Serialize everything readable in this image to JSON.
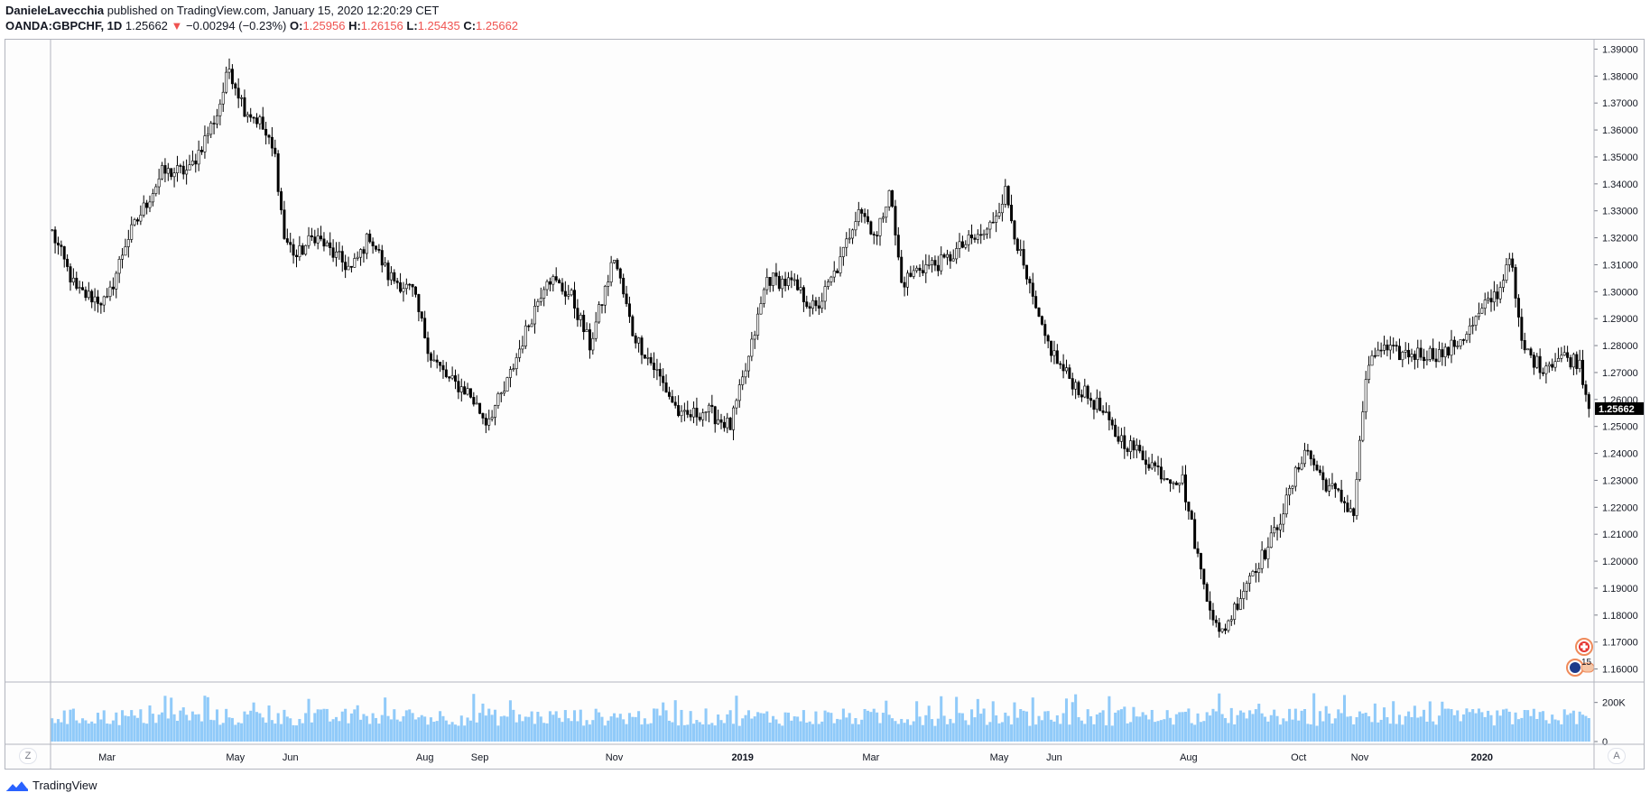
{
  "header": {
    "author": "DanieleLavecchia",
    "published_text": "published on TradingView.com, January 15, 2020 12:20:29 CET",
    "symbol": "OANDA:GBPCHF, 1D",
    "last": "1.25662",
    "change": "−0.00294 (−0.23%)",
    "open_label": "O:",
    "open": "1.25956",
    "high_label": "H:",
    "high": "1.26156",
    "low_label": "L:",
    "low": "1.25435",
    "close_label": "C:",
    "close": "1.25662"
  },
  "footer": {
    "brand": "TradingView"
  },
  "buttons": {
    "z_label": "Z",
    "a_label": "A"
  },
  "badges": {
    "events_count": "15"
  },
  "colors": {
    "candle": "#000000",
    "volume": "#90caf9",
    "last_price_bg": "#000000",
    "down": "#ef5350"
  },
  "chart_data": {
    "type": "candlestick",
    "title": "",
    "x_ticks": [
      "Mar",
      "May",
      "Jun",
      "Aug",
      "Sep",
      "Nov",
      "2019",
      "Mar",
      "May",
      "Jun",
      "Aug",
      "Oct",
      "Nov",
      "2020"
    ],
    "x_tick_positions_index": [
      18,
      60,
      78,
      122,
      140,
      184,
      226,
      268,
      310,
      328,
      372,
      408,
      428,
      468
    ],
    "y_ticks": [
      "1.39000",
      "1.38000",
      "1.37000",
      "1.36000",
      "1.35000",
      "1.34000",
      "1.33000",
      "1.32000",
      "1.31000",
      "1.30000",
      "1.29000",
      "1.28000",
      "1.27000",
      "1.26000",
      "1.25000",
      "1.24000",
      "1.23000",
      "1.22000",
      "1.21000",
      "1.20000",
      "1.19000",
      "1.18000",
      "1.17000",
      "1.16000"
    ],
    "ylim": [
      1.1555,
      1.3935
    ],
    "last_price_label": "1.25662",
    "volume_ticks": [
      "200K",
      "0"
    ],
    "volume_max": 300000,
    "series_anchors": [
      [
        0,
        1.322
      ],
      [
        8,
        1.3
      ],
      [
        18,
        1.296
      ],
      [
        24,
        1.318
      ],
      [
        36,
        1.344
      ],
      [
        45,
        1.345
      ],
      [
        54,
        1.366
      ],
      [
        58,
        1.383
      ],
      [
        63,
        1.368
      ],
      [
        68,
        1.363
      ],
      [
        73,
        1.35
      ],
      [
        76,
        1.32
      ],
      [
        80,
        1.313
      ],
      [
        86,
        1.321
      ],
      [
        92,
        1.314
      ],
      [
        98,
        1.308
      ],
      [
        104,
        1.321
      ],
      [
        110,
        1.306
      ],
      [
        118,
        1.3
      ],
      [
        124,
        1.276
      ],
      [
        130,
        1.267
      ],
      [
        136,
        1.263
      ],
      [
        142,
        1.252
      ],
      [
        148,
        1.263
      ],
      [
        154,
        1.282
      ],
      [
        162,
        1.306
      ],
      [
        170,
        1.298
      ],
      [
        176,
        1.28
      ],
      [
        184,
        1.313
      ],
      [
        190,
        1.285
      ],
      [
        198,
        1.27
      ],
      [
        206,
        1.253
      ],
      [
        214,
        1.256
      ],
      [
        222,
        1.25
      ],
      [
        228,
        1.275
      ],
      [
        234,
        1.305
      ],
      [
        242,
        1.303
      ],
      [
        250,
        1.293
      ],
      [
        258,
        1.311
      ],
      [
        264,
        1.332
      ],
      [
        270,
        1.32
      ],
      [
        274,
        1.339
      ],
      [
        278,
        1.303
      ],
      [
        284,
        1.309
      ],
      [
        292,
        1.311
      ],
      [
        298,
        1.317
      ],
      [
        306,
        1.322
      ],
      [
        312,
        1.337
      ],
      [
        318,
        1.308
      ],
      [
        324,
        1.285
      ],
      [
        330,
        1.272
      ],
      [
        336,
        1.264
      ],
      [
        342,
        1.258
      ],
      [
        348,
        1.247
      ],
      [
        356,
        1.24
      ],
      [
        364,
        1.232
      ],
      [
        370,
        1.23
      ],
      [
        376,
        1.196
      ],
      [
        382,
        1.172
      ],
      [
        386,
        1.18
      ],
      [
        392,
        1.195
      ],
      [
        398,
        1.205
      ],
      [
        404,
        1.222
      ],
      [
        410,
        1.242
      ],
      [
        416,
        1.23
      ],
      [
        422,
        1.223
      ],
      [
        426,
        1.218
      ],
      [
        430,
        1.268
      ],
      [
        434,
        1.279
      ],
      [
        440,
        1.277
      ],
      [
        448,
        1.277
      ],
      [
        456,
        1.277
      ],
      [
        464,
        1.286
      ],
      [
        470,
        1.296
      ],
      [
        474,
        1.301
      ],
      [
        477,
        1.315
      ],
      [
        481,
        1.28
      ],
      [
        487,
        1.272
      ],
      [
        494,
        1.276
      ],
      [
        500,
        1.274
      ],
      [
        503,
        1.257
      ]
    ],
    "candle_count": 504
  }
}
